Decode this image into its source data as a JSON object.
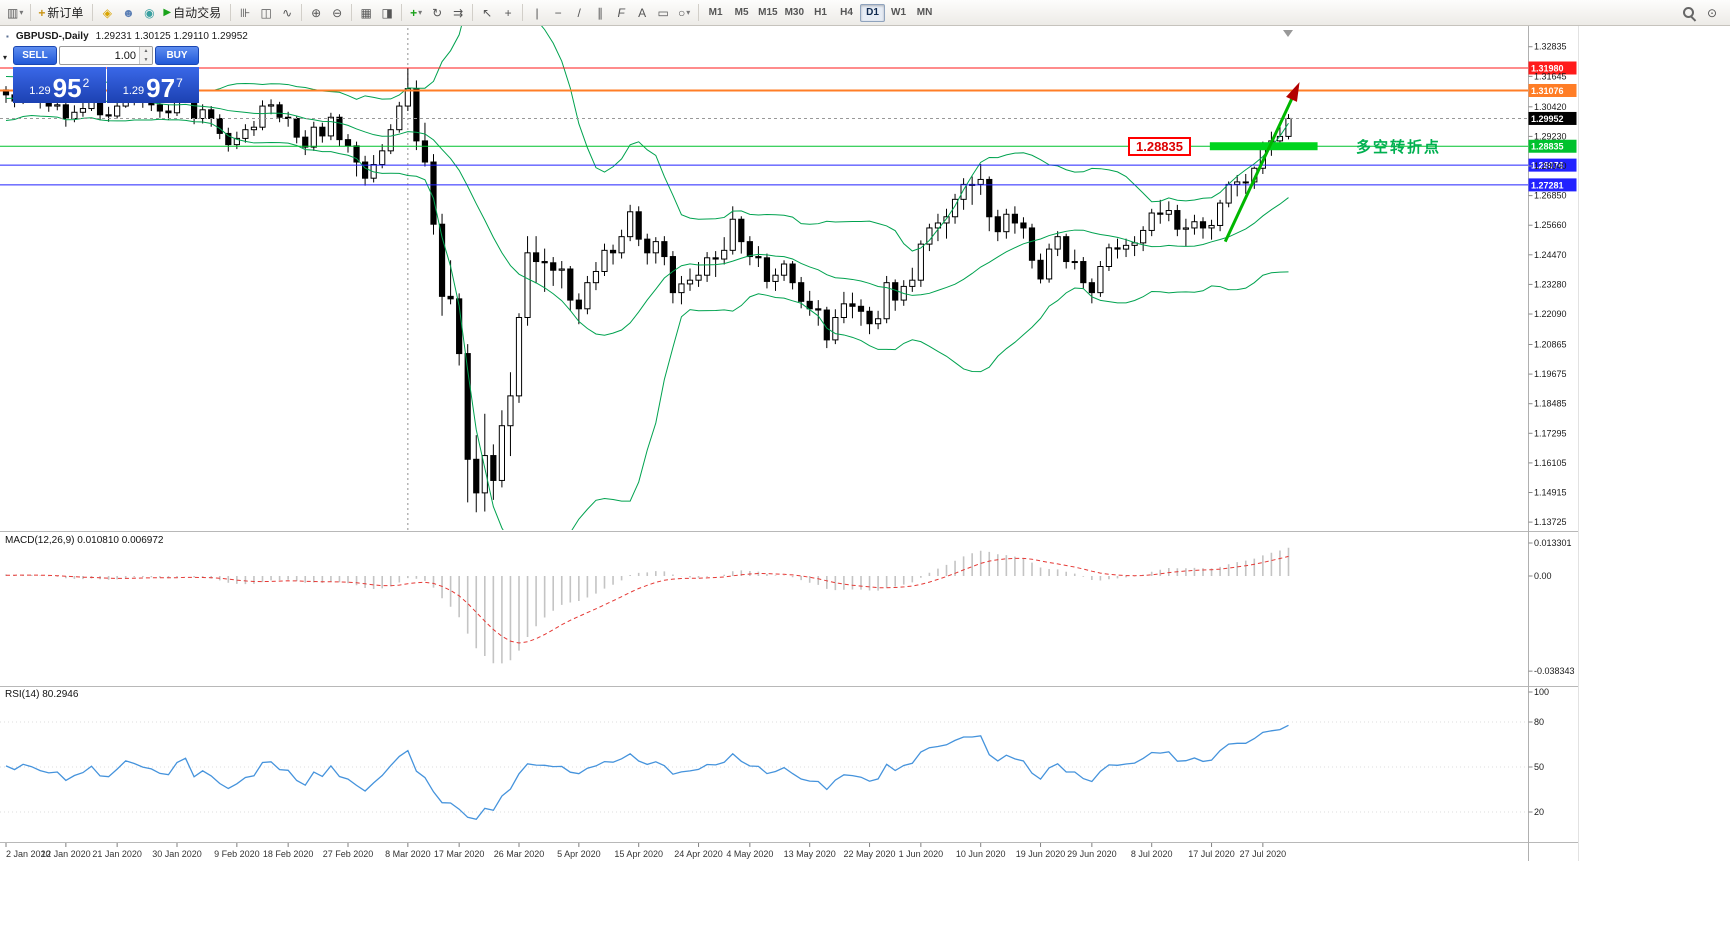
{
  "toolbar": {
    "new_order_label": "新订单",
    "autotrading_label": "自动交易",
    "icon_glyphs": {
      "new_chart": "▥",
      "dropdown": "▾",
      "collapse": "▾",
      "new_order": "+",
      "scripts": "◈",
      "profile": "☻",
      "community": "◉",
      "autotrading_play": "▶",
      "bar_chart": "⊪",
      "candle_chart": "◫",
      "line_chart": "∿",
      "zoom_in": "⊕",
      "zoom_out": "⊖",
      "tile_windows": "▦",
      "arrange": "◨",
      "indicators": "+",
      "cycles": "↻",
      "shift": "⇉",
      "cursor": "↖",
      "crosshair": "+",
      "vline": "|",
      "hline": "−",
      "trendline": "/",
      "channel": "∥",
      "fibo": "F",
      "text": "A",
      "label": "▭",
      "shapes": "○",
      "community_right": "⊙",
      "spin_up": "▲",
      "spin_down": "▼"
    },
    "timeframes": [
      "M1",
      "M5",
      "M15",
      "M30",
      "H1",
      "H4",
      "D1",
      "W1",
      "MN"
    ],
    "active_timeframe": "D1"
  },
  "chart_header": {
    "symbol_period": "GBPUSD-,Daily",
    "ohlc": "1.29231 1.30125 1.29110 1.29952",
    "window_icon": "▪"
  },
  "one_click": {
    "sell_label": "SELL",
    "buy_label": "BUY",
    "volume": "1.00",
    "sell_price": {
      "prefix": "1.29",
      "pips": "95",
      "fraction": "2"
    },
    "buy_price": {
      "prefix": "1.29",
      "pips": "97",
      "fraction": "7"
    }
  },
  "levels": [
    {
      "price": 1.3198,
      "label": "1.31980",
      "color": "#ff1a1a",
      "thickness": 1
    },
    {
      "price": 1.31076,
      "label": "1.31076",
      "color": "#ff7d26",
      "thickness": 2
    },
    {
      "price": 1.28835,
      "label": "1.28835",
      "color": "#00c22e",
      "thickness": 1
    },
    {
      "price": 1.28076,
      "label": "1.28076",
      "color": "#2222ff",
      "thickness": 1
    },
    {
      "price": 1.27281,
      "label": "1.27281",
      "color": "#2222ff",
      "thickness": 1
    }
  ],
  "current_price": {
    "price": 1.29952,
    "label": "1.29952",
    "tag_color": "#000000"
  },
  "price_scale_ticks": [
    "1.32835",
    "1.31645",
    "1.30420",
    "1.29230",
    "1.28040",
    "1.26850",
    "1.25660",
    "1.24470",
    "1.23280",
    "1.22090",
    "1.20865",
    "1.19675",
    "1.18485",
    "1.17295",
    "1.16105",
    "1.14915",
    "1.13725"
  ],
  "macd_panel": {
    "label": "MACD(12,26,9) 0.010810 0.006972",
    "scale_labels": [
      "0.013301",
      "0.00",
      "-0.038343"
    ]
  },
  "rsi_panel": {
    "label": "RSI(14) 80.2946",
    "scale_labels": [
      "100",
      "80",
      "50",
      "20"
    ],
    "level_lines": [
      80,
      50,
      20
    ]
  },
  "annotations": {
    "level_box_label": "1.28835",
    "turning_point_text": "多空转折点",
    "highlight": {
      "price": 1.28835,
      "from_index": 140.8,
      "to_index": 153.4
    },
    "arrow": {
      "from_index": 142.6,
      "from_price": 1.25,
      "to_index": 150.6,
      "to_price": 1.309
    },
    "vline_index": 47
  },
  "date_axis": {
    "ticks": [
      {
        "i": 0,
        "label": "2 Jan 2020"
      },
      {
        "i": 7,
        "label": "12 Jan 2020"
      },
      {
        "i": 13,
        "label": "21 Jan 2020"
      },
      {
        "i": 20,
        "label": "30 Jan 2020"
      },
      {
        "i": 27,
        "label": "9 Feb 2020"
      },
      {
        "i": 33,
        "label": "18 Feb 2020"
      },
      {
        "i": 40,
        "label": "27 Feb 2020"
      },
      {
        "i": 47,
        "label": "8 Mar 2020"
      },
      {
        "i": 53,
        "label": "17 Mar 2020"
      },
      {
        "i": 60,
        "label": "26 Mar 2020"
      },
      {
        "i": 67,
        "label": "5 Apr 2020"
      },
      {
        "i": 74,
        "label": "15 Apr 2020"
      },
      {
        "i": 81,
        "label": "24 Apr 2020"
      },
      {
        "i": 87,
        "label": "4 May 2020"
      },
      {
        "i": 94,
        "label": "13 May 2020"
      },
      {
        "i": 101,
        "label": "22 May 2020"
      },
      {
        "i": 107,
        "label": "1 Jun 2020"
      },
      {
        "i": 114,
        "label": "10 Jun 2020"
      },
      {
        "i": 121,
        "label": "19 Jun 2020"
      },
      {
        "i": 127,
        "label": "29 Jun 2020"
      },
      {
        "i": 134,
        "label": "8 Jul 2020"
      },
      {
        "i": 141,
        "label": "17 Jul 2020"
      },
      {
        "i": 147,
        "label": "27 Jul 2020"
      }
    ]
  },
  "chart_data": {
    "type": "candlestick",
    "symbol": "GBPUSD-",
    "timeframe": "Daily",
    "ohlc_current": {
      "open": 1.29231,
      "high": 1.30125,
      "low": 1.2911,
      "close": 1.29952
    },
    "y_axis_range": [
      1.13407,
      1.33387
    ],
    "indicators": {
      "bollinger": {
        "period": 20,
        "deviation": 2
      },
      "macd": {
        "fast": 12,
        "slow": 26,
        "signal": 9,
        "current_main": 0.01081,
        "current_signal": 0.006972
      },
      "rsi": {
        "period": 14,
        "current": 80.2946
      }
    },
    "warmup_closes": [
      1.308,
      1.303,
      1.3,
      1.3045,
      1.31,
      1.314,
      1.3105,
      1.306,
      1.3015,
      1.3005,
      1.305,
      1.3105,
      1.3145,
      1.311,
      1.307,
      1.303,
      1.306,
      1.311,
      1.314,
      1.3095
    ],
    "candles": [
      [
        1.311,
        1.3125,
        1.3058,
        1.309
      ],
      [
        1.309,
        1.3112,
        1.304,
        1.3065
      ],
      [
        1.3065,
        1.3122,
        1.3053,
        1.31
      ],
      [
        1.31,
        1.3132,
        1.3062,
        1.3085
      ],
      [
        1.3085,
        1.3105,
        1.3035,
        1.306
      ],
      [
        1.306,
        1.3092,
        1.3022,
        1.3045
      ],
      [
        1.3045,
        1.3078,
        1.3028,
        1.305
      ],
      [
        1.305,
        1.3062,
        1.2962,
        1.2995
      ],
      [
        1.2995,
        1.3048,
        1.298,
        1.302
      ],
      [
        1.302,
        1.3062,
        1.3002,
        1.3035
      ],
      [
        1.3035,
        1.3098,
        1.3025,
        1.307
      ],
      [
        1.307,
        1.3082,
        1.2988,
        1.301
      ],
      [
        1.301,
        1.3042,
        1.2982,
        1.3005
      ],
      [
        1.3005,
        1.3068,
        1.2995,
        1.3045
      ],
      [
        1.3045,
        1.3118,
        1.3038,
        1.3095
      ],
      [
        1.3095,
        1.3112,
        1.3048,
        1.308
      ],
      [
        1.308,
        1.3102,
        1.3038,
        1.306
      ],
      [
        1.306,
        1.3088,
        1.3025,
        1.305
      ],
      [
        1.305,
        1.3065,
        1.2998,
        1.3025
      ],
      [
        1.3025,
        1.3052,
        1.299,
        1.3018
      ],
      [
        1.3018,
        1.3095,
        1.3005,
        1.308
      ],
      [
        1.308,
        1.3128,
        1.3062,
        1.3105
      ],
      [
        1.3105,
        1.3112,
        1.2972,
        1.2995
      ],
      [
        1.2995,
        1.3052,
        1.2975,
        1.303
      ],
      [
        1.303,
        1.3045,
        1.2962,
        1.2995
      ],
      [
        1.2995,
        1.3012,
        1.2912,
        1.2935
      ],
      [
        1.2935,
        1.2958,
        1.2862,
        1.289
      ],
      [
        1.289,
        1.2942,
        1.2872,
        1.2915
      ],
      [
        1.2915,
        1.2972,
        1.2898,
        1.295
      ],
      [
        1.295,
        1.2985,
        1.2925,
        1.296
      ],
      [
        1.296,
        1.3068,
        1.2948,
        1.3045
      ],
      [
        1.3045,
        1.3072,
        1.3012,
        1.305
      ],
      [
        1.305,
        1.3062,
        1.298,
        1.3
      ],
      [
        1.3,
        1.3022,
        1.2962,
        1.2995
      ],
      [
        1.2995,
        1.3005,
        1.2895,
        1.292
      ],
      [
        1.292,
        1.2948,
        1.2848,
        1.288
      ],
      [
        1.288,
        1.2982,
        1.2865,
        1.296
      ],
      [
        1.296,
        1.2978,
        1.2898,
        1.2925
      ],
      [
        1.2925,
        1.3018,
        1.2908,
        1.3
      ],
      [
        1.3,
        1.3012,
        1.2882,
        1.291
      ],
      [
        1.291,
        1.2932,
        1.2858,
        1.2885
      ],
      [
        1.2885,
        1.2902,
        1.2762,
        1.282
      ],
      [
        1.282,
        1.2845,
        1.2725,
        1.2755
      ],
      [
        1.2755,
        1.2848,
        1.2738,
        1.281
      ],
      [
        1.281,
        1.2892,
        1.2795,
        1.2865
      ],
      [
        1.2865,
        1.2972,
        1.2852,
        1.295
      ],
      [
        1.295,
        1.3062,
        1.2938,
        1.3045
      ],
      [
        1.3045,
        1.32,
        1.3025,
        1.3115
      ],
      [
        1.3115,
        1.3148,
        1.2868,
        1.2905
      ],
      [
        1.2905,
        1.2978,
        1.2802,
        1.282
      ],
      [
        1.282,
        1.2852,
        1.2528,
        1.257
      ],
      [
        1.257,
        1.2612,
        1.2202,
        1.228
      ],
      [
        1.228,
        1.2425,
        1.2248,
        1.227
      ],
      [
        1.227,
        1.2292,
        1.2002,
        1.205
      ],
      [
        1.205,
        1.2088,
        1.1452,
        1.1625
      ],
      [
        1.1625,
        1.1722,
        1.1412,
        1.149
      ],
      [
        1.149,
        1.1808,
        1.1415,
        1.164
      ],
      [
        1.164,
        1.1685,
        1.1462,
        1.154
      ],
      [
        1.154,
        1.1822,
        1.1512,
        1.176
      ],
      [
        1.176,
        1.1975,
        1.1638,
        1.188
      ],
      [
        1.188,
        1.2212,
        1.1852,
        1.2195
      ],
      [
        1.2195,
        1.2522,
        1.2162,
        1.2455
      ],
      [
        1.2455,
        1.2522,
        1.2332,
        1.242
      ],
      [
        1.242,
        1.2472,
        1.2298,
        1.2415
      ],
      [
        1.2415,
        1.2438,
        1.2322,
        1.2385
      ],
      [
        1.2385,
        1.2422,
        1.2312,
        1.239
      ],
      [
        1.239,
        1.2402,
        1.2222,
        1.2265
      ],
      [
        1.2265,
        1.2292,
        1.2168,
        1.223
      ],
      [
        1.223,
        1.2362,
        1.2208,
        1.2335
      ],
      [
        1.2335,
        1.2418,
        1.2305,
        1.238
      ],
      [
        1.238,
        1.2492,
        1.2362,
        1.2465
      ],
      [
        1.2465,
        1.2488,
        1.2408,
        1.2455
      ],
      [
        1.2455,
        1.2548,
        1.2432,
        1.252
      ],
      [
        1.252,
        1.2648,
        1.2502,
        1.262
      ],
      [
        1.262,
        1.2642,
        1.2482,
        1.251
      ],
      [
        1.251,
        1.2532,
        1.2408,
        1.2455
      ],
      [
        1.2455,
        1.2518,
        1.2412,
        1.25
      ],
      [
        1.25,
        1.2522,
        1.2405,
        1.244
      ],
      [
        1.244,
        1.2462,
        1.2252,
        1.2295
      ],
      [
        1.2295,
        1.2362,
        1.2248,
        1.233
      ],
      [
        1.233,
        1.2392,
        1.2302,
        1.2345
      ],
      [
        1.2345,
        1.2418,
        1.2318,
        1.2365
      ],
      [
        1.2365,
        1.2458,
        1.2338,
        1.2435
      ],
      [
        1.2435,
        1.2462,
        1.2358,
        1.243
      ],
      [
        1.243,
        1.2518,
        1.2408,
        1.2465
      ],
      [
        1.2465,
        1.2642,
        1.2448,
        1.259
      ],
      [
        1.259,
        1.2602,
        1.2452,
        1.25
      ],
      [
        1.25,
        1.2522,
        1.2405,
        1.244
      ],
      [
        1.244,
        1.2482,
        1.2398,
        1.2435
      ],
      [
        1.2435,
        1.2452,
        1.2312,
        1.234
      ],
      [
        1.234,
        1.2392,
        1.2302,
        1.2365
      ],
      [
        1.2365,
        1.2425,
        1.2342,
        1.241
      ],
      [
        1.241,
        1.2422,
        1.2308,
        1.2335
      ],
      [
        1.2335,
        1.2358,
        1.2232,
        1.226
      ],
      [
        1.226,
        1.2302,
        1.2202,
        1.223
      ],
      [
        1.223,
        1.2265,
        1.2162,
        1.2225
      ],
      [
        1.2225,
        1.2238,
        1.2072,
        1.2105
      ],
      [
        1.2105,
        1.2228,
        1.2088,
        1.2195
      ],
      [
        1.2195,
        1.2298,
        1.2172,
        1.225
      ],
      [
        1.225,
        1.2295,
        1.2192,
        1.224
      ],
      [
        1.224,
        1.2268,
        1.2162,
        1.222
      ],
      [
        1.222,
        1.2238,
        1.2128,
        1.217
      ],
      [
        1.217,
        1.2222,
        1.2148,
        1.219
      ],
      [
        1.219,
        1.2362,
        1.2172,
        1.2335
      ],
      [
        1.2335,
        1.2348,
        1.2222,
        1.2265
      ],
      [
        1.2265,
        1.2345,
        1.2242,
        1.232
      ],
      [
        1.232,
        1.2395,
        1.2298,
        1.2345
      ],
      [
        1.2345,
        1.2505,
        1.2318,
        1.249
      ],
      [
        1.249,
        1.2572,
        1.2462,
        1.2555
      ],
      [
        1.2555,
        1.2612,
        1.2502,
        1.2575
      ],
      [
        1.2575,
        1.2632,
        1.2512,
        1.26
      ],
      [
        1.26,
        1.2692,
        1.2572,
        1.267
      ],
      [
        1.267,
        1.2755,
        1.2628,
        1.273
      ],
      [
        1.273,
        1.2762,
        1.2648,
        1.273
      ],
      [
        1.273,
        1.2812,
        1.2688,
        1.275
      ],
      [
        1.275,
        1.2762,
        1.2542,
        1.26
      ],
      [
        1.26,
        1.2628,
        1.2502,
        1.254
      ],
      [
        1.254,
        1.2632,
        1.2512,
        1.261
      ],
      [
        1.261,
        1.2642,
        1.2532,
        1.2575
      ],
      [
        1.2575,
        1.2598,
        1.2512,
        1.2555
      ],
      [
        1.2555,
        1.2572,
        1.2392,
        1.2425
      ],
      [
        1.2425,
        1.2452,
        1.2332,
        1.235
      ],
      [
        1.235,
        1.2492,
        1.2335,
        1.247
      ],
      [
        1.247,
        1.2542,
        1.2442,
        1.252
      ],
      [
        1.252,
        1.2532,
        1.2392,
        1.242
      ],
      [
        1.242,
        1.2468,
        1.2388,
        1.242
      ],
      [
        1.242,
        1.2438,
        1.2312,
        1.2335
      ],
      [
        1.2335,
        1.2352,
        1.2252,
        1.2295
      ],
      [
        1.2295,
        1.2422,
        1.2278,
        1.24
      ],
      [
        1.24,
        1.2492,
        1.2382,
        1.2475
      ],
      [
        1.2475,
        1.2512,
        1.2432,
        1.247
      ],
      [
        1.247,
        1.2512,
        1.2438,
        1.2485
      ],
      [
        1.2485,
        1.2522,
        1.2442,
        1.2495
      ],
      [
        1.2495,
        1.2562,
        1.2462,
        1.2545
      ],
      [
        1.2545,
        1.2632,
        1.2522,
        1.2615
      ],
      [
        1.2615,
        1.2668,
        1.2572,
        1.261
      ],
      [
        1.261,
        1.2662,
        1.2582,
        1.2625
      ],
      [
        1.2625,
        1.2648,
        1.2522,
        1.255
      ],
      [
        1.255,
        1.2592,
        1.2482,
        1.2555
      ],
      [
        1.2555,
        1.2608,
        1.2528,
        1.258
      ],
      [
        1.258,
        1.2598,
        1.2512,
        1.2555
      ],
      [
        1.2555,
        1.2588,
        1.2508,
        1.2565
      ],
      [
        1.2565,
        1.2668,
        1.2542,
        1.2655
      ],
      [
        1.2655,
        1.2742,
        1.2638,
        1.273
      ],
      [
        1.273,
        1.2768,
        1.2682,
        1.274
      ],
      [
        1.274,
        1.2772,
        1.2692,
        1.274
      ],
      [
        1.274,
        1.2802,
        1.2712,
        1.2795
      ],
      [
        1.2795,
        1.2902,
        1.2772,
        1.288
      ],
      [
        1.288,
        1.2942,
        1.2845,
        1.2905
      ],
      [
        1.2905,
        1.2968,
        1.2882,
        1.2923
      ],
      [
        1.29231,
        1.30125,
        1.2911,
        1.29952
      ]
    ]
  }
}
